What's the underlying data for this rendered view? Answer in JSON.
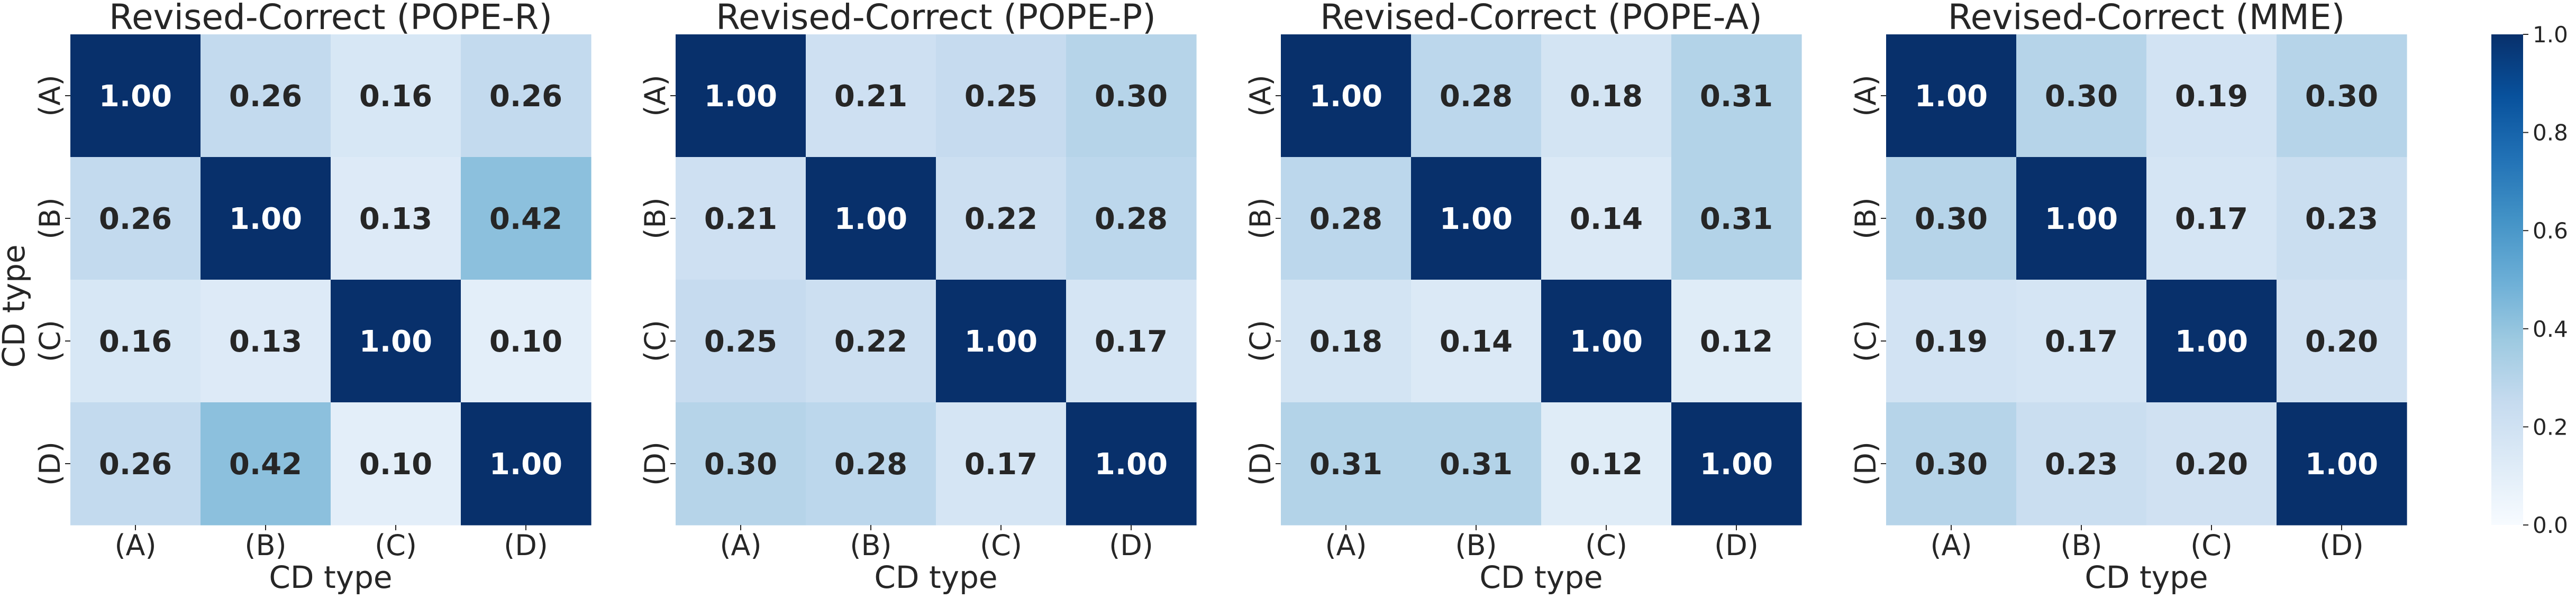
{
  "chart_data": {
    "type": "heatmap",
    "shared_xlabel": "CD type",
    "shared_ylabel": "CD type",
    "categories": [
      "(A)",
      "(B)",
      "(C)",
      "(D)"
    ],
    "colorbar": {
      "ticks": [
        "0.0",
        "0.2",
        "0.4",
        "0.6",
        "0.8",
        "1.0"
      ],
      "range": [
        0.0,
        1.0
      ],
      "colormap": "Blues",
      "colors": [
        "#f7fbff",
        "#deebf7",
        "#c6dbef",
        "#9ecae1",
        "#6baed6",
        "#4292c6",
        "#2171b5",
        "#08519c",
        "#08306b"
      ]
    },
    "panels": [
      {
        "title": "Revised-Correct (POPE-R)",
        "values": [
          [
            1.0,
            0.26,
            0.16,
            0.26
          ],
          [
            0.26,
            1.0,
            0.13,
            0.42
          ],
          [
            0.16,
            0.13,
            1.0,
            0.1
          ],
          [
            0.26,
            0.42,
            0.1,
            1.0
          ]
        ],
        "labels": [
          [
            "1.00",
            "0.26",
            "0.16",
            "0.26"
          ],
          [
            "0.26",
            "1.00",
            "0.13",
            "0.42"
          ],
          [
            "0.16",
            "0.13",
            "1.00",
            "0.10"
          ],
          [
            "0.26",
            "0.42",
            "0.10",
            "1.00"
          ]
        ]
      },
      {
        "title": "Revised-Correct (POPE-P)",
        "values": [
          [
            1.0,
            0.21,
            0.25,
            0.3
          ],
          [
            0.21,
            1.0,
            0.22,
            0.28
          ],
          [
            0.25,
            0.22,
            1.0,
            0.17
          ],
          [
            0.3,
            0.28,
            0.17,
            1.0
          ]
        ],
        "labels": [
          [
            "1.00",
            "0.21",
            "0.25",
            "0.30"
          ],
          [
            "0.21",
            "1.00",
            "0.22",
            "0.28"
          ],
          [
            "0.25",
            "0.22",
            "1.00",
            "0.17"
          ],
          [
            "0.30",
            "0.28",
            "0.17",
            "1.00"
          ]
        ]
      },
      {
        "title": "Revised-Correct (POPE-A)",
        "values": [
          [
            1.0,
            0.28,
            0.18,
            0.31
          ],
          [
            0.28,
            1.0,
            0.14,
            0.31
          ],
          [
            0.18,
            0.14,
            1.0,
            0.12
          ],
          [
            0.31,
            0.31,
            0.12,
            1.0
          ]
        ],
        "labels": [
          [
            "1.00",
            "0.28",
            "0.18",
            "0.31"
          ],
          [
            "0.28",
            "1.00",
            "0.14",
            "0.31"
          ],
          [
            "0.18",
            "0.14",
            "1.00",
            "0.12"
          ],
          [
            "0.31",
            "0.31",
            "0.12",
            "1.00"
          ]
        ]
      },
      {
        "title": "Revised-Correct (MME)",
        "values": [
          [
            1.0,
            0.3,
            0.19,
            0.3
          ],
          [
            0.3,
            1.0,
            0.17,
            0.23
          ],
          [
            0.19,
            0.17,
            1.0,
            0.2
          ],
          [
            0.3,
            0.23,
            0.2,
            1.0
          ]
        ],
        "labels": [
          [
            "1.00",
            "0.30",
            "0.19",
            "0.30"
          ],
          [
            "0.30",
            "1.00",
            "0.17",
            "0.23"
          ],
          [
            "0.19",
            "0.17",
            "1.00",
            "0.20"
          ],
          [
            "0.30",
            "0.23",
            "0.20",
            "1.00"
          ]
        ]
      }
    ]
  }
}
